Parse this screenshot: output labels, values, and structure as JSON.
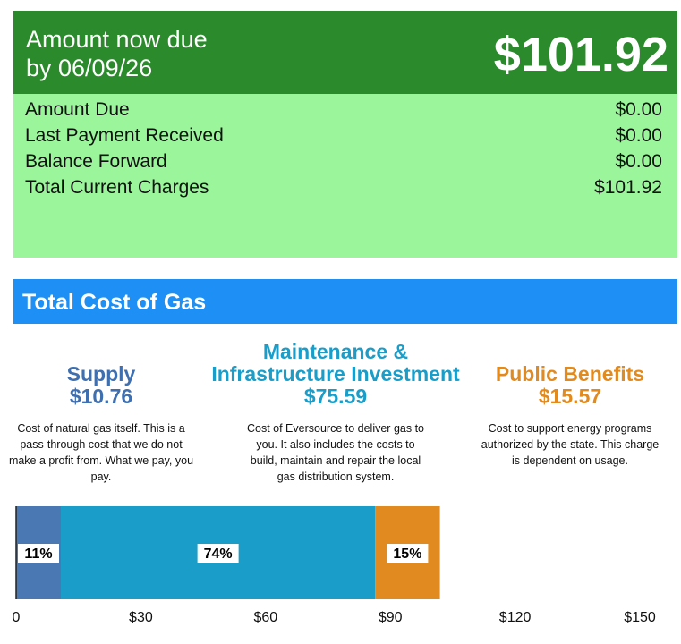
{
  "header": {
    "label": "Amount now due by 06/09/26",
    "amount": "$101.92"
  },
  "summary": {
    "rows": [
      [
        "Amount Due",
        "$0.00"
      ],
      [
        "Last Payment Received",
        "$0.00"
      ],
      [
        "Balance Forward",
        "$0.00"
      ],
      [
        "Total Current Charges",
        "$101.92"
      ]
    ]
  },
  "section_title": "Total Cost of Gas",
  "chart_data": {
    "type": "bar",
    "orientation": "horizontal",
    "stacked": true,
    "series": [
      {
        "name": "Supply",
        "amount_label": "$10.76",
        "description": "Cost of natural gas itself. This is a pass-through cost that we do not make a profit from. What we pay, you pay.",
        "color": "#4a78b3",
        "title_color": "#3f6fae",
        "values": [
          10.76
        ],
        "share_label": "11%"
      },
      {
        "name": "Maintenance & Infrastructure Investment",
        "amount_label": "$75.59",
        "description": "Cost of Eversource to deliver gas to you. It also includes the costs to build, maintain and repair the local gas distribution system.",
        "color": "#1a9dc8",
        "title_color": "#1a9dc8",
        "values": [
          75.59
        ],
        "share_label": "74%"
      },
      {
        "name": "Public Benefits",
        "amount_label": "$15.57",
        "description": "Cost to support energy programs authorized by the state. This charge is dependent on usage.",
        "color": "#e08a1f",
        "title_color": "#e08a1f",
        "values": [
          15.57
        ],
        "share_label": "15%"
      }
    ],
    "xlim": [
      0,
      150
    ],
    "xticks": [
      0,
      {
        "value": 30,
        "label": "$30"
      },
      {
        "value": 60,
        "label": "$60"
      },
      {
        "value": 90,
        "label": "$90"
      },
      {
        "value": 120,
        "label": "$120"
      },
      {
        "value": 150,
        "label": "$150"
      }
    ]
  }
}
